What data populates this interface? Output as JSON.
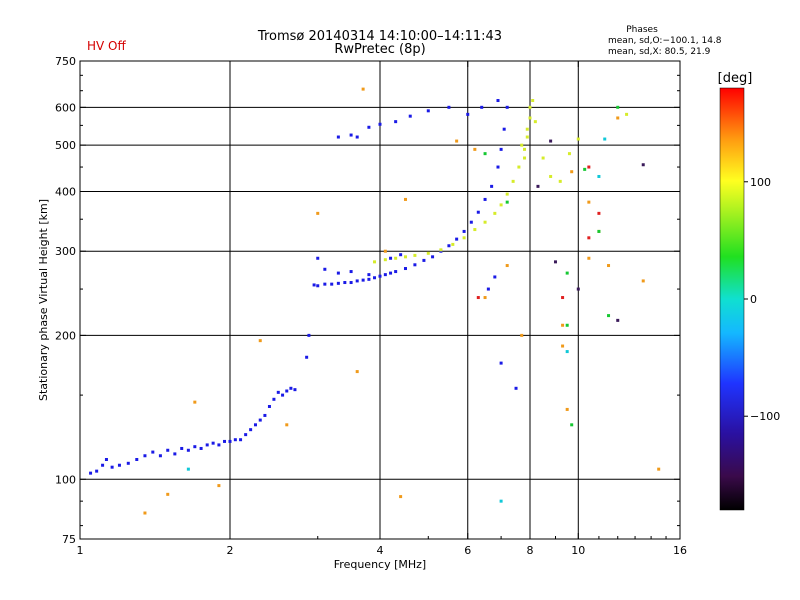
{
  "status": {
    "hv": "HV Off",
    "hv_color": "#d40000"
  },
  "header": {
    "title": "Tromsø 20140314 14:10:00–14:11:43",
    "subtitle": "RwPretec (8p)"
  },
  "phases": {
    "heading": "Phases",
    "line_o": "mean, sd,O:−100.1, 14.8",
    "line_x": "mean, sd,X:  80.5, 21.9"
  },
  "colorbar": {
    "unit": "[deg]",
    "range": [
      -180,
      180
    ],
    "ticks": [
      {
        "value": 100,
        "label": "100"
      },
      {
        "value": 0,
        "label": "0"
      },
      {
        "value": -100,
        "label": "−100"
      }
    ]
  },
  "chart_data": {
    "type": "scatter",
    "xlabel": "Frequency [MHz]",
    "ylabel": "Stationary phase Virtual Height [km]",
    "x_scale": "log",
    "y_scale": "log",
    "xlim": [
      1,
      16
    ],
    "ylim": [
      75,
      750
    ],
    "grid": true,
    "x_ticks": [
      {
        "value": 1,
        "label": "1"
      },
      {
        "value": 2,
        "label": "2"
      },
      {
        "value": 4,
        "label": "4"
      },
      {
        "value": 6,
        "label": "6"
      },
      {
        "value": 8,
        "label": "8"
      },
      {
        "value": 10,
        "label": "10"
      },
      {
        "value": 16,
        "label": "16"
      }
    ],
    "y_ticks": [
      {
        "value": 75,
        "label": "75"
      },
      {
        "value": 100,
        "label": "100"
      },
      {
        "value": 200,
        "label": "200"
      },
      {
        "value": 300,
        "label": "300"
      },
      {
        "value": 400,
        "label": "400"
      },
      {
        "value": 500,
        "label": "500"
      },
      {
        "value": 600,
        "label": "600"
      },
      {
        "value": 750,
        "label": "750"
      }
    ],
    "x_gridlines": [
      2,
      4,
      6,
      8,
      10
    ],
    "y_gridlines": [
      100,
      200,
      300,
      400,
      500,
      600
    ],
    "series": [
      {
        "trace": "E / F1 low-frequency trace",
        "color": "#1a1ae6",
        "points": [
          [
            1.05,
            103
          ],
          [
            1.08,
            104
          ],
          [
            1.11,
            107
          ],
          [
            1.13,
            110
          ],
          [
            1.16,
            106
          ],
          [
            1.2,
            107
          ],
          [
            1.25,
            108
          ],
          [
            1.3,
            110
          ],
          [
            1.35,
            112
          ],
          [
            1.4,
            114
          ],
          [
            1.45,
            112
          ],
          [
            1.5,
            115
          ],
          [
            1.55,
            113
          ],
          [
            1.6,
            116
          ],
          [
            1.65,
            115
          ],
          [
            1.7,
            117
          ],
          [
            1.75,
            116
          ],
          [
            1.8,
            118
          ],
          [
            1.85,
            119
          ],
          [
            1.9,
            118
          ],
          [
            1.95,
            120
          ],
          [
            2.0,
            120
          ],
          [
            2.05,
            121
          ],
          [
            2.1,
            121
          ],
          [
            2.15,
            124
          ],
          [
            2.2,
            127
          ],
          [
            2.25,
            130
          ],
          [
            2.3,
            133
          ],
          [
            2.35,
            136
          ],
          [
            2.4,
            142
          ],
          [
            2.45,
            147
          ],
          [
            2.5,
            152
          ],
          [
            2.55,
            150
          ],
          [
            2.6,
            153
          ],
          [
            2.65,
            155
          ],
          [
            2.7,
            154
          ],
          [
            2.85,
            180
          ],
          [
            2.88,
            200
          ]
        ]
      },
      {
        "trace": "F2 O-mode trace",
        "color": "#1a1ae6",
        "points": [
          [
            2.95,
            255
          ],
          [
            3.0,
            254
          ],
          [
            3.1,
            256
          ],
          [
            3.2,
            256
          ],
          [
            3.3,
            257
          ],
          [
            3.4,
            258
          ],
          [
            3.5,
            258
          ],
          [
            3.6,
            260
          ],
          [
            3.7,
            261
          ],
          [
            3.8,
            262
          ],
          [
            3.9,
            264
          ],
          [
            4.0,
            266
          ],
          [
            4.1,
            268
          ],
          [
            4.2,
            270
          ],
          [
            4.3,
            272
          ],
          [
            4.5,
            276
          ],
          [
            4.7,
            281
          ],
          [
            4.9,
            287
          ],
          [
            5.1,
            292
          ],
          [
            5.3,
            300
          ],
          [
            5.5,
            308
          ],
          [
            5.7,
            318
          ],
          [
            5.9,
            330
          ],
          [
            6.1,
            345
          ],
          [
            6.3,
            362
          ],
          [
            6.5,
            385
          ],
          [
            6.7,
            410
          ],
          [
            6.9,
            450
          ],
          [
            7.0,
            490
          ],
          [
            7.1,
            540
          ],
          [
            7.2,
            600
          ],
          [
            3.0,
            290
          ],
          [
            3.1,
            275
          ],
          [
            3.3,
            270
          ],
          [
            3.5,
            272
          ],
          [
            3.8,
            268
          ],
          [
            4.2,
            290
          ],
          [
            4.4,
            295
          ],
          [
            3.3,
            520
          ],
          [
            3.5,
            525
          ],
          [
            3.6,
            520
          ],
          [
            3.8,
            545
          ],
          [
            4.0,
            553
          ],
          [
            4.3,
            560
          ],
          [
            4.6,
            575
          ],
          [
            5.0,
            590
          ],
          [
            5.5,
            600
          ],
          [
            6.0,
            580
          ],
          [
            6.4,
            600
          ],
          [
            6.9,
            620
          ],
          [
            6.6,
            250
          ],
          [
            6.8,
            265
          ],
          [
            7.0,
            175
          ],
          [
            7.5,
            155
          ]
        ]
      },
      {
        "trace": "F2 X-mode trace",
        "color": "#d6ec2a",
        "points": [
          [
            3.9,
            285
          ],
          [
            4.1,
            288
          ],
          [
            4.3,
            290
          ],
          [
            4.5,
            292
          ],
          [
            4.7,
            294
          ],
          [
            5.0,
            297
          ],
          [
            5.3,
            302
          ],
          [
            5.6,
            310
          ],
          [
            5.9,
            320
          ],
          [
            6.2,
            333
          ],
          [
            6.5,
            345
          ],
          [
            6.8,
            360
          ],
          [
            7.0,
            375
          ],
          [
            7.2,
            395
          ],
          [
            7.4,
            420
          ],
          [
            7.6,
            450
          ],
          [
            7.8,
            490
          ],
          [
            7.9,
            540
          ],
          [
            8.0,
            600
          ],
          [
            8.2,
            560
          ],
          [
            8.5,
            470
          ],
          [
            8.8,
            430
          ],
          [
            9.2,
            420
          ],
          [
            9.6,
            480
          ],
          [
            10.0,
            515
          ],
          [
            7.7,
            500
          ],
          [
            7.8,
            470
          ],
          [
            7.9,
            520
          ],
          [
            8.0,
            570
          ],
          [
            8.1,
            620
          ],
          [
            12.5,
            580
          ]
        ]
      },
      {
        "trace": "scattered echoes",
        "color": "#f09a1a",
        "points": [
          [
            3.7,
            655
          ],
          [
            3.0,
            360
          ],
          [
            4.1,
            300
          ],
          [
            4.5,
            385
          ],
          [
            5.7,
            510
          ],
          [
            6.2,
            490
          ],
          [
            6.5,
            240
          ],
          [
            7.2,
            280
          ],
          [
            7.7,
            200
          ],
          [
            9.3,
            210
          ],
          [
            9.3,
            190
          ],
          [
            9.7,
            440
          ],
          [
            10.5,
            380
          ],
          [
            10.5,
            290
          ],
          [
            11.0,
            330
          ],
          [
            11.5,
            280
          ],
          [
            12.0,
            570
          ],
          [
            13.5,
            260
          ],
          [
            14.5,
            105
          ],
          [
            2.6,
            130
          ],
          [
            2.3,
            195
          ],
          [
            1.9,
            97
          ],
          [
            1.7,
            145
          ],
          [
            1.5,
            93
          ],
          [
            1.35,
            85
          ],
          [
            3.6,
            168
          ],
          [
            4.4,
            92
          ],
          [
            9.5,
            140
          ]
        ]
      },
      {
        "trace": "green echoes",
        "color": "#16c832",
        "points": [
          [
            9.5,
            270
          ],
          [
            9.5,
            210
          ],
          [
            9.7,
            130
          ],
          [
            11.0,
            330
          ],
          [
            11.5,
            220
          ],
          [
            12.0,
            600
          ],
          [
            6.5,
            480
          ],
          [
            7.2,
            380
          ],
          [
            10.3,
            445
          ]
        ]
      },
      {
        "trace": "cyan echoes",
        "color": "#10c8d8",
        "points": [
          [
            11.3,
            515
          ],
          [
            9.5,
            185
          ],
          [
            7.0,
            90
          ],
          [
            1.65,
            105
          ],
          [
            11.0,
            430
          ]
        ]
      },
      {
        "trace": "red echoes",
        "color": "#e02020",
        "points": [
          [
            6.3,
            240
          ],
          [
            10.5,
            450
          ],
          [
            10.5,
            320
          ],
          [
            11.0,
            360
          ],
          [
            9.3,
            240
          ]
        ]
      },
      {
        "trace": "dark echoes",
        "color": "#3a1a5a",
        "points": [
          [
            12.0,
            215
          ],
          [
            10.0,
            250
          ],
          [
            13.5,
            455
          ],
          [
            8.3,
            410
          ],
          [
            8.8,
            510
          ],
          [
            9.0,
            285
          ]
        ]
      }
    ]
  }
}
